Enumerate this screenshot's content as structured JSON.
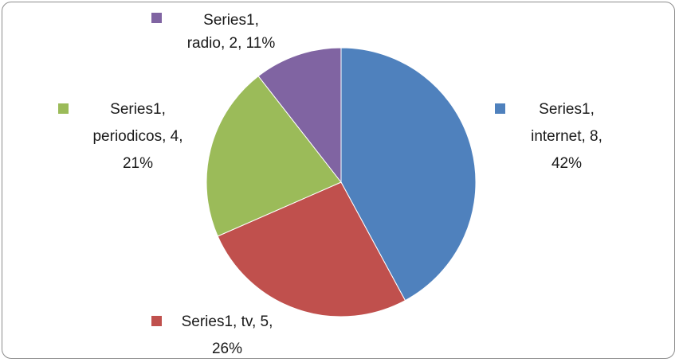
{
  "chart_data": {
    "type": "pie",
    "series_name": "Series1",
    "slices": [
      {
        "category": "internet",
        "value": 8,
        "percent": "42%",
        "color": "#4F81BD",
        "label_lines": [
          "Series1,",
          "internet, 8,",
          "42%"
        ]
      },
      {
        "category": "tv",
        "value": 5,
        "percent": "26%",
        "color": "#C0504D",
        "label_lines": [
          "Series1, tv, 5,",
          "26%"
        ]
      },
      {
        "category": "periodicos",
        "value": 4,
        "percent": "21%",
        "color": "#9BBB59",
        "label_lines": [
          "Series1,",
          "periodicos, 4,",
          "21%"
        ]
      },
      {
        "category": "radio",
        "value": 2,
        "percent": "11%",
        "color": "#8064A2",
        "label_lines": [
          "Series1,",
          "radio, 2, 11%"
        ]
      }
    ],
    "title": "",
    "legend": "none",
    "data_labels": "outside"
  }
}
